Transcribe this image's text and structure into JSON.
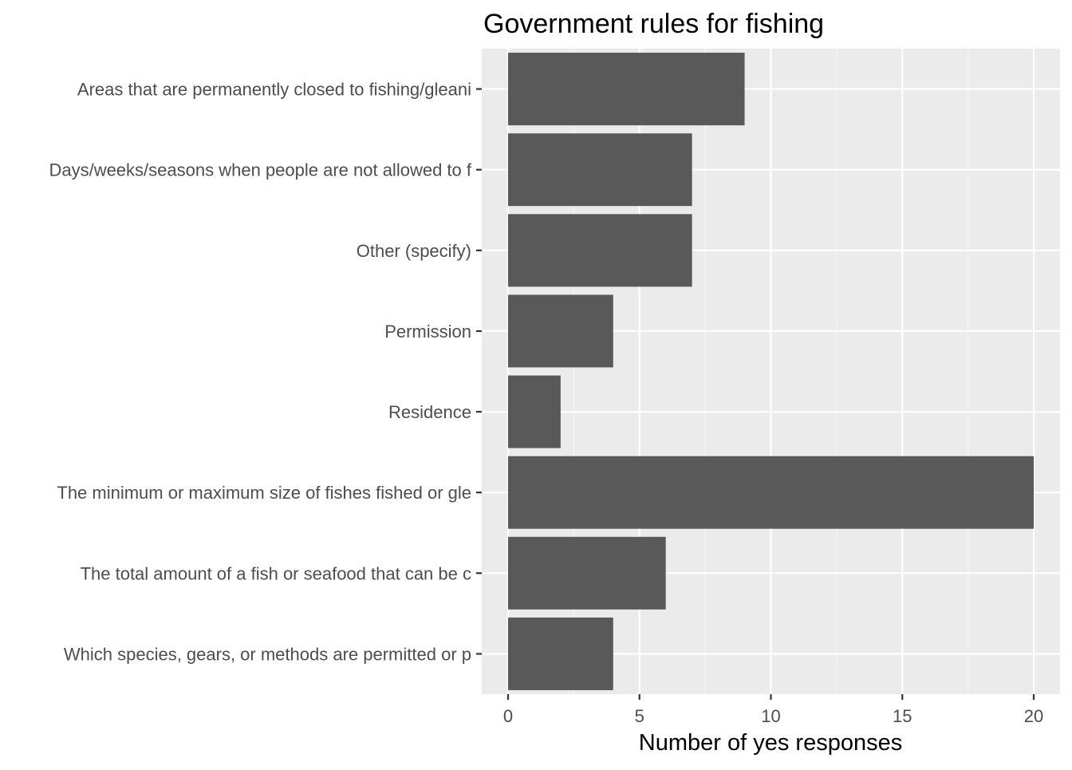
{
  "chart_data": {
    "type": "bar",
    "orientation": "horizontal",
    "title": "Government rules for fishing",
    "xlabel": "Number of yes responses",
    "ylabel": "",
    "categories": [
      "Which species, gears, or methods are permitted or p",
      "The total amount of a fish or seafood that can be c",
      "The minimum or maximum size of fishes fished or gle",
      "Residence",
      "Permission",
      "Other (specify)",
      "Days/weeks/seasons when people are not allowed to f",
      "Areas that are permanently closed to fishing/gleani"
    ],
    "values": [
      4,
      6,
      20,
      2,
      4,
      7,
      7,
      9
    ],
    "xlim": [
      -1,
      21
    ],
    "x_ticks": [
      0,
      5,
      10,
      15,
      20
    ],
    "x_tick_labels": [
      "0",
      "5",
      "10",
      "15",
      "20"
    ],
    "grid": true,
    "legend": "none"
  },
  "colors": {
    "panel_background": "#EBEBEB",
    "grid_major": "#FFFFFF",
    "grid_minor": "#F5F5F5",
    "bar_fill": "#595959",
    "axis_text": "#4D4D4D",
    "tick_mark": "#333333",
    "title_text": "#000000"
  }
}
